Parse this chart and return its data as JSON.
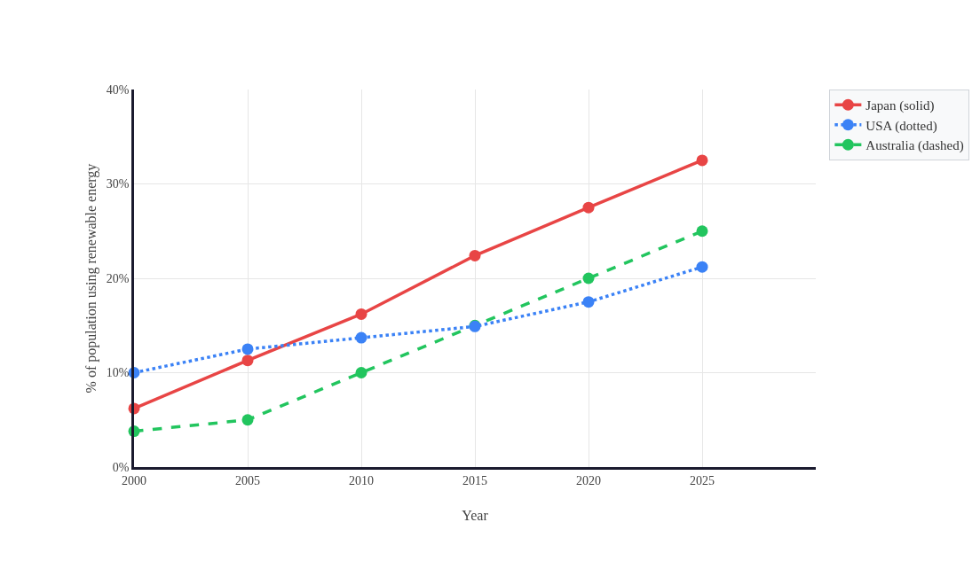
{
  "chart_data": {
    "type": "line",
    "xlabel": "Year",
    "ylabel": "% of population using renewable energy",
    "x": [
      2000,
      2005,
      2010,
      2015,
      2020,
      2025
    ],
    "series": [
      {
        "name": "Japan (solid)",
        "color": "#e84545",
        "line_style": "solid",
        "values": [
          6.2,
          11.3,
          16.2,
          22.4,
          27.5,
          32.5
        ]
      },
      {
        "name": "USA (dotted)",
        "color": "#3b82f6",
        "line_style": "dotted",
        "values": [
          10.0,
          12.5,
          13.7,
          14.9,
          17.5,
          21.2
        ]
      },
      {
        "name": "Australia (dashed)",
        "color": "#22c55e",
        "line_style": "dashed",
        "values": [
          3.8,
          5.0,
          10.0,
          15.0,
          20.0,
          25.0
        ]
      }
    ],
    "xlim": [
      2000,
      2030
    ],
    "xticks": [
      2000,
      2005,
      2010,
      2015,
      2020,
      2025
    ],
    "ylim": [
      0,
      40
    ],
    "yticks": [
      {
        "value": 0,
        "label": "0%"
      },
      {
        "value": 10,
        "label": "10%"
      },
      {
        "value": 20,
        "label": "20%"
      },
      {
        "value": 30,
        "label": "30%"
      },
      {
        "value": 40,
        "label": "40%"
      }
    ],
    "grid": true,
    "legend": "top right",
    "marker": "circle"
  }
}
